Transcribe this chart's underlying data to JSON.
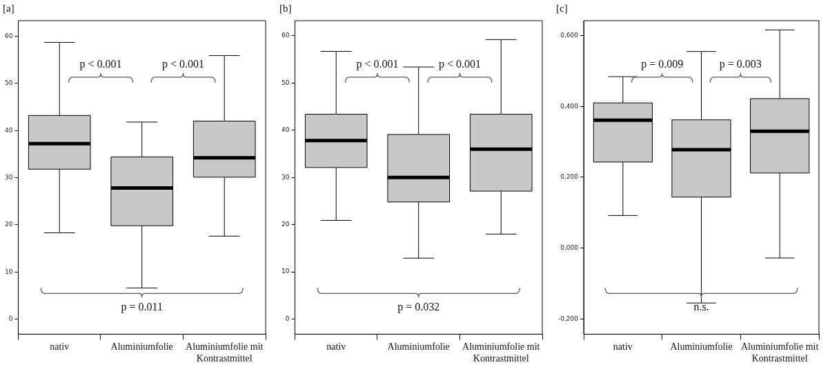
{
  "chart_data": [
    {
      "type": "box",
      "title": "[a]",
      "categories": [
        "nativ",
        "Aluminiumfolie",
        "Aluminiumfolie mit Kontrastmittel"
      ],
      "series": [
        {
          "color": "#c8c8c8",
          "boxes": [
            {
              "low": 18.3,
              "q1": 31.8,
              "median": 37.2,
              "q3": 43.2,
              "high": 58.7
            },
            {
              "low": 6.6,
              "q1": 19.8,
              "median": 27.8,
              "q3": 34.4,
              "high": 41.8
            },
            {
              "low": 17.6,
              "q1": 30.1,
              "median": 34.2,
              "q3": 42.0,
              "high": 55.9
            }
          ]
        }
      ],
      "ylim": [
        -3.2,
        63.3
      ],
      "yticks": [
        0,
        10,
        20,
        30,
        40,
        50,
        60
      ],
      "grid": false,
      "legend": false,
      "annotations": [
        "p < 0.001",
        "p < 0.001",
        "p = 0.011"
      ]
    },
    {
      "type": "box",
      "title": "[b]",
      "categories": [
        "nativ",
        "Aluminiumfolie",
        "Aluminiumfolie mit Kontrastmittel"
      ],
      "series": [
        {
          "color": "#c8c8c8",
          "boxes": [
            {
              "low": 20.9,
              "q1": 32.1,
              "median": 37.8,
              "q3": 43.4,
              "high": 56.7
            },
            {
              "low": 12.9,
              "q1": 24.8,
              "median": 30.0,
              "q3": 39.1,
              "high": 53.4
            },
            {
              "low": 18.0,
              "q1": 27.1,
              "median": 36.0,
              "q3": 43.4,
              "high": 59.2
            }
          ]
        }
      ],
      "ylim": [
        -3.2,
        63.2
      ],
      "yticks": [
        0,
        10,
        20,
        30,
        40,
        50,
        60
      ],
      "grid": false,
      "legend": false,
      "annotations": [
        "p < 0.001",
        "p < 0.001",
        "p = 0.032"
      ]
    },
    {
      "type": "box",
      "title": "[c]",
      "categories": [
        "nativ",
        "Aluminiumfolie",
        "Aluminiumfolie mit Kontrastmittel"
      ],
      "series": [
        {
          "color": "#c8c8c8",
          "boxes": [
            {
              "low": 0.092,
              "q1": 0.243,
              "median": 0.361,
              "q3": 0.41,
              "high": 0.484
            },
            {
              "low": -0.155,
              "q1": 0.144,
              "median": 0.278,
              "q3": 0.362,
              "high": 0.555
            },
            {
              "low": -0.028,
              "q1": 0.212,
              "median": 0.33,
              "q3": 0.422,
              "high": 0.616
            }
          ]
        }
      ],
      "ylim": [
        -0.243,
        0.642
      ],
      "yticks": [
        {
          "value": -0.2,
          "label": "-0,200"
        },
        {
          "value": 0,
          "label": "0,000"
        },
        {
          "value": 0.2,
          "label": "0,200"
        },
        {
          "value": 0.4,
          "label": "0,400"
        },
        {
          "value": 0.6,
          "label": "0,600"
        }
      ],
      "grid": false,
      "legend": false,
      "annotations": [
        "p = 0.009",
        "p = 0.003",
        "n.s."
      ]
    }
  ]
}
